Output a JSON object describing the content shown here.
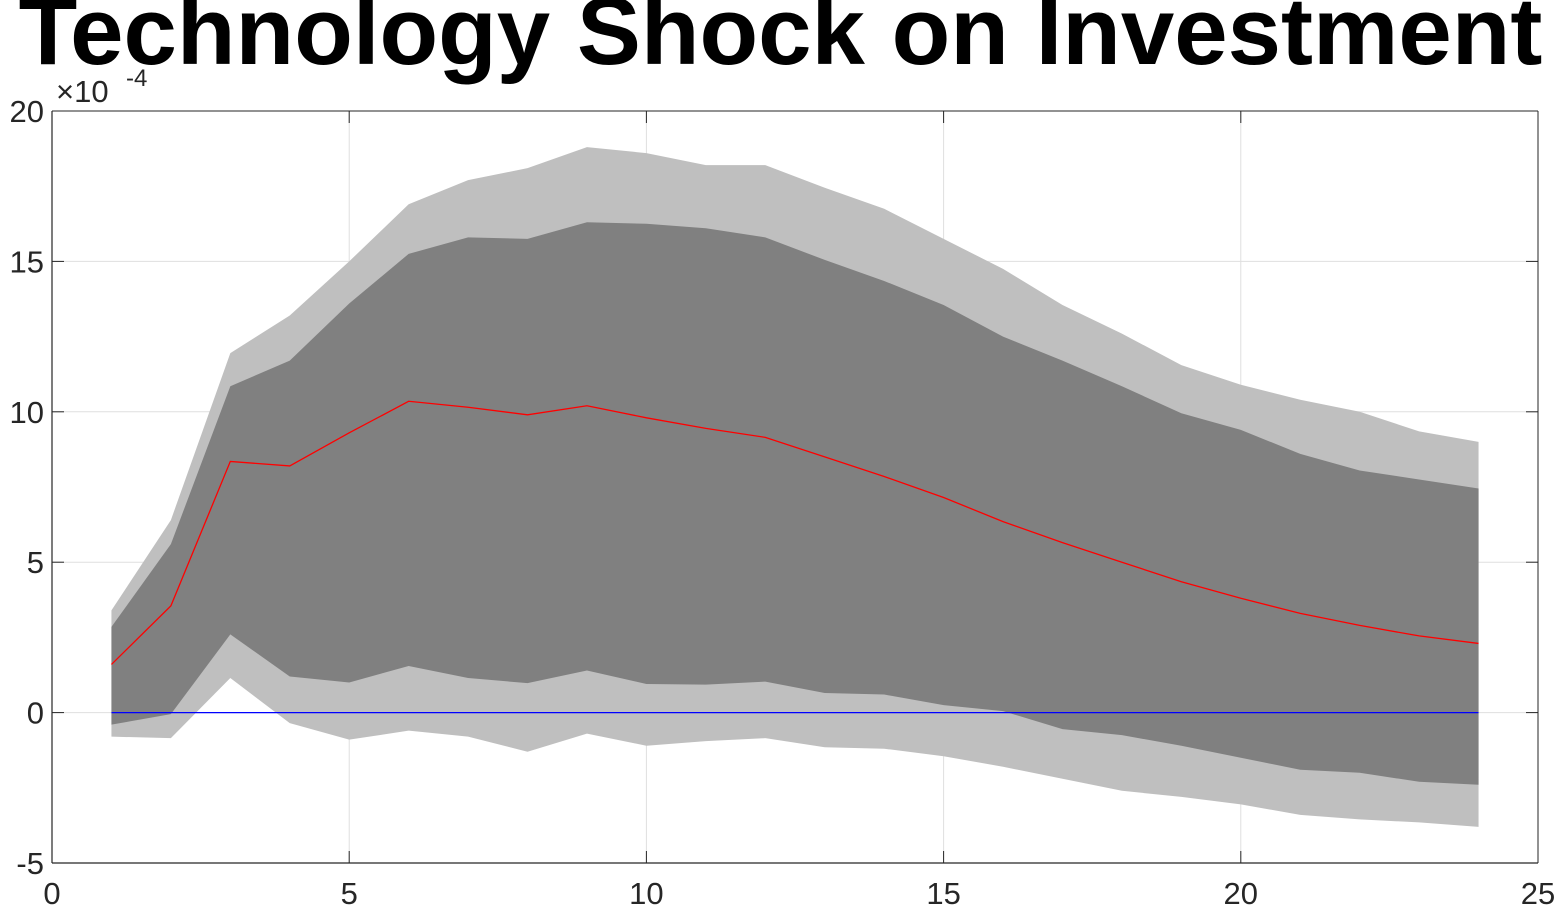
{
  "chart_data": {
    "type": "area",
    "title": "Technology Shock on Investment",
    "xlabel": "",
    "ylabel": "",
    "xlim": [
      0,
      25
    ],
    "ylim": [
      -5,
      20
    ],
    "y_scale_label": "×10",
    "y_scale_exponent": "-4",
    "grid": true,
    "x_ticks": [
      "0",
      "5",
      "10",
      "15",
      "20",
      "25"
    ],
    "y_ticks": [
      "-5",
      "0",
      "5",
      "10",
      "15",
      "20"
    ],
    "x": [
      1,
      2,
      3,
      4,
      5,
      6,
      7,
      8,
      9,
      10,
      11,
      12,
      13,
      14,
      15,
      16,
      17,
      18,
      19,
      20,
      21,
      22,
      23,
      24
    ],
    "series": [
      {
        "role": "outer-band",
        "color": "#bfbfbf",
        "upper": [
          3.4,
          6.4,
          11.95,
          13.2,
          15.0,
          16.9,
          17.7,
          18.1,
          18.8,
          18.6,
          18.2,
          18.2,
          17.45,
          16.75,
          15.75,
          14.75,
          13.55,
          12.6,
          11.55,
          10.9,
          10.4,
          10.0,
          9.35,
          9.0
        ],
        "lower": [
          -0.8,
          -0.85,
          1.15,
          -0.35,
          -0.9,
          -0.6,
          -0.8,
          -1.3,
          -0.7,
          -1.1,
          -0.95,
          -0.85,
          -1.15,
          -1.2,
          -1.45,
          -1.8,
          -2.2,
          -2.6,
          -2.8,
          -3.05,
          -3.4,
          -3.55,
          -3.65,
          -3.8
        ]
      },
      {
        "role": "inner-band",
        "color": "#808080",
        "upper": [
          2.85,
          5.6,
          10.85,
          11.7,
          13.6,
          15.25,
          15.8,
          15.75,
          16.3,
          16.25,
          16.1,
          15.8,
          15.05,
          14.35,
          13.55,
          12.5,
          11.7,
          10.85,
          9.95,
          9.4,
          8.6,
          8.05,
          7.75,
          7.45
        ],
        "lower": [
          -0.4,
          -0.05,
          2.6,
          1.2,
          1.0,
          1.55,
          1.15,
          0.98,
          1.4,
          0.95,
          0.93,
          1.03,
          0.65,
          0.6,
          0.25,
          0.05,
          -0.55,
          -0.75,
          -1.1,
          -1.5,
          -1.9,
          -2.0,
          -2.3,
          -2.4
        ]
      },
      {
        "role": "median",
        "color": "#ff0000",
        "values": [
          1.6,
          3.55,
          8.35,
          8.2,
          9.3,
          10.35,
          10.15,
          9.9,
          10.2,
          9.8,
          9.45,
          9.15,
          8.5,
          7.85,
          7.15,
          6.35,
          5.65,
          5.0,
          4.35,
          3.8,
          3.3,
          2.9,
          2.55,
          2.3
        ]
      },
      {
        "role": "zero-line",
        "color": "#0000ff",
        "values": [
          0,
          0,
          0,
          0,
          0,
          0,
          0,
          0,
          0,
          0,
          0,
          0,
          0,
          0,
          0,
          0,
          0,
          0,
          0,
          0,
          0,
          0,
          0,
          0
        ]
      }
    ]
  }
}
